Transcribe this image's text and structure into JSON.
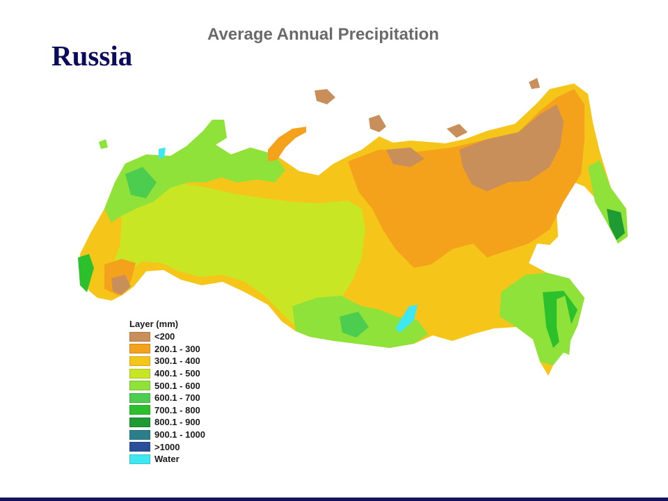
{
  "slide_title": "Russia",
  "map_title": "Average Annual Precipitation",
  "legend": {
    "title": "Layer (mm)",
    "items": [
      {
        "label": "<200",
        "color": "#c98f5a"
      },
      {
        "label": "200.1 - 300",
        "color": "#f4a21b"
      },
      {
        "label": "300.1 - 400",
        "color": "#f6c51a"
      },
      {
        "label": "400.1 - 500",
        "color": "#c9e624"
      },
      {
        "label": "500.1 - 600",
        "color": "#8ee23a"
      },
      {
        "label": "600.1 - 700",
        "color": "#4ccd4f"
      },
      {
        "label": "700.1 - 800",
        "color": "#2cc12c"
      },
      {
        "label": "800.1 - 900",
        "color": "#1e9c33"
      },
      {
        "label": "900.1 - 1000",
        "color": "#2a7f8a"
      },
      {
        "label": ">1000",
        "color": "#2a4f9a"
      },
      {
        "label": "Water",
        "color": "#3fe7f0"
      }
    ]
  }
}
